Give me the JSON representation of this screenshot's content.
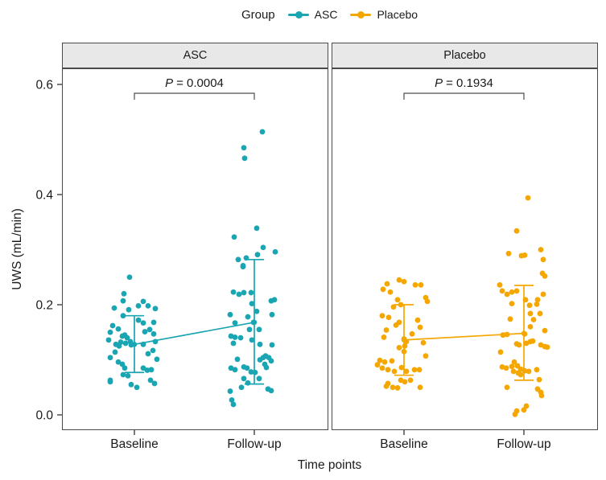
{
  "chart_data": {
    "type": "scatter",
    "subtype": "jitter-with-mean-errorbars",
    "legend": {
      "title": "Group",
      "position": "top",
      "items": [
        {
          "label": "ASC",
          "color": "#1aa5b2"
        },
        {
          "label": "Placebo",
          "color": "#f5a700"
        }
      ]
    },
    "xlabel": "Time points",
    "ylabel": "UWS (mL/min)",
    "x_categories": [
      "Baseline",
      "Follow-up"
    ],
    "y_ticks": [
      {
        "label": "0.0",
        "value": 0.0
      },
      {
        "label": "0.2",
        "value": 0.2
      },
      {
        "label": "0.4",
        "value": 0.4
      },
      {
        "label": "0.6",
        "value": 0.6
      }
    ],
    "ylim": [
      -0.03,
      0.63
    ],
    "grid": false,
    "facets": [
      {
        "label": "ASC",
        "color": "#1aa5b2",
        "p_label": "P = 0.0004",
        "groups": [
          {
            "x": "Baseline",
            "mean": 0.128,
            "err_low": 0.077,
            "err_high": 0.18,
            "points": [
              [
                -6,
                0.25
              ],
              [
                -13,
                0.22
              ],
              [
                -25,
                0.194
              ],
              [
                -14,
                0.207
              ],
              [
                -7,
                0.191
              ],
              [
                5,
                0.198
              ],
              [
                11,
                0.206
              ],
              [
                17,
                0.198
              ],
              [
                -14,
                0.18
              ],
              [
                26,
                0.193
              ],
              [
                24,
                0.168
              ],
              [
                5,
                0.172
              ],
              [
                11,
                0.167
              ],
              [
                -27,
                0.162
              ],
              [
                -20,
                0.156
              ],
              [
                -30,
                0.15
              ],
              [
                -12,
                0.145
              ],
              [
                -9,
                0.14
              ],
              [
                -5,
                0.133
              ],
              [
                -15,
                0.143
              ],
              [
                13,
                0.151
              ],
              [
                19,
                0.155
              ],
              [
                24,
                0.147
              ],
              [
                -32,
                0.136
              ],
              [
                -4,
                0.127
              ],
              [
                11,
                0.128
              ],
              [
                26,
                0.133
              ],
              [
                -24,
                0.114
              ],
              [
                -30,
                0.104
              ],
              [
                -20,
                0.096
              ],
              [
                -15,
                0.092
              ],
              [
                -12,
                0.085
              ],
              [
                17,
                0.111
              ],
              [
                23,
                0.117
              ],
              [
                28,
                0.101
              ],
              [
                11,
                0.085
              ],
              [
                16,
                0.081
              ],
              [
                21,
                0.082
              ],
              [
                -14,
                0.073
              ],
              [
                -8,
                0.071
              ],
              [
                -30,
                0.063
              ],
              [
                -4,
                0.055
              ],
              [
                20,
                0.063
              ],
              [
                25,
                0.057
              ],
              [
                3,
                0.05
              ],
              [
                -30,
                0.06
              ],
              [
                -17,
                0.132
              ],
              [
                -11,
                0.13
              ],
              [
                -19,
                0.125
              ],
              [
                -23,
                0.128
              ]
            ]
          },
          {
            "x": "Follow-up",
            "mean": 0.168,
            "err_low": 0.056,
            "err_high": 0.282,
            "points": [
              [
                10,
                0.514
              ],
              [
                -13,
                0.485
              ],
              [
                -12,
                0.466
              ],
              [
                3,
                0.339
              ],
              [
                -25,
                0.323
              ],
              [
                11,
                0.304
              ],
              [
                26,
                0.296
              ],
              [
                4,
                0.291
              ],
              [
                -10,
                0.285
              ],
              [
                -20,
                0.282
              ],
              [
                -14,
                0.271
              ],
              [
                -14,
                0.269
              ],
              [
                -26,
                0.223
              ],
              [
                -19,
                0.219
              ],
              [
                -13,
                0.222
              ],
              [
                -4,
                0.222
              ],
              [
                -3,
                0.202
              ],
              [
                3,
                0.188
              ],
              [
                21,
                0.207
              ],
              [
                25,
                0.209
              ],
              [
                22,
                0.182
              ],
              [
                -30,
                0.182
              ],
              [
                -24,
                0.167
              ],
              [
                -8,
                0.178
              ],
              [
                -1,
                0.168
              ],
              [
                -6,
                0.155
              ],
              [
                6,
                0.155
              ],
              [
                -29,
                0.143
              ],
              [
                -24,
                0.141
              ],
              [
                -17,
                0.14
              ],
              [
                -26,
                0.13
              ],
              [
                -3,
                0.136
              ],
              [
                7,
                0.128
              ],
              [
                22,
                0.127
              ],
              [
                14,
                0.107
              ],
              [
                7,
                0.1
              ],
              [
                11,
                0.104
              ],
              [
                18,
                0.104
              ],
              [
                -21,
                0.101
              ],
              [
                21,
                0.098
              ],
              [
                13,
                0.092
              ],
              [
                15,
                0.086
              ],
              [
                -29,
                0.085
              ],
              [
                -24,
                0.082
              ],
              [
                -13,
                0.087
              ],
              [
                -9,
                0.085
              ],
              [
                -4,
                0.078
              ],
              [
                1,
                0.077
              ],
              [
                6,
                0.066
              ],
              [
                -13,
                0.066
              ],
              [
                -8,
                0.058
              ],
              [
                -16,
                0.05
              ],
              [
                17,
                0.047
              ],
              [
                21,
                0.044
              ],
              [
                -30,
                0.043
              ],
              [
                -28,
                0.027
              ],
              [
                -26,
                0.019
              ]
            ]
          }
        ]
      },
      {
        "label": "Placebo",
        "color": "#f5a700",
        "p_label": "P = 0.1934",
        "groups": [
          {
            "x": "Baseline",
            "mean": 0.136,
            "err_low": 0.072,
            "err_high": 0.2,
            "points": [
              [
                -6,
                0.245
              ],
              [
                0,
                0.242
              ],
              [
                -21,
                0.238
              ],
              [
                -26,
                0.228
              ],
              [
                14,
                0.236
              ],
              [
                21,
                0.236
              ],
              [
                -17,
                0.223
              ],
              [
                -8,
                0.209
              ],
              [
                -4,
                0.2
              ],
              [
                27,
                0.213
              ],
              [
                29,
                0.206
              ],
              [
                -13,
                0.196
              ],
              [
                -27,
                0.18
              ],
              [
                -19,
                0.177
              ],
              [
                -6,
                0.168
              ],
              [
                17,
                0.172
              ],
              [
                20,
                0.159
              ],
              [
                -22,
                0.154
              ],
              [
                -25,
                0.141
              ],
              [
                0,
                0.138
              ],
              [
                3,
                0.133
              ],
              [
                1,
                0.125
              ],
              [
                -6,
                0.122
              ],
              [
                0,
                0.115
              ],
              [
                27,
                0.107
              ],
              [
                -30,
                0.099
              ],
              [
                -24,
                0.096
              ],
              [
                -15,
                0.098
              ],
              [
                -33,
                0.091
              ],
              [
                -27,
                0.085
              ],
              [
                -20,
                0.082
              ],
              [
                -12,
                0.079
              ],
              [
                -3,
                0.086
              ],
              [
                3,
                0.079
              ],
              [
                13,
                0.082
              ],
              [
                19,
                0.082
              ],
              [
                -4,
                0.063
              ],
              [
                1,
                0.06
              ],
              [
                8,
                0.063
              ],
              [
                -20,
                0.057
              ],
              [
                -14,
                0.05
              ],
              [
                -8,
                0.049
              ],
              [
                20,
                0.05
              ],
              [
                -22,
                0.052
              ],
              [
                -10,
                0.163
              ],
              [
                10,
                0.147
              ],
              [
                24,
                0.131
              ]
            ]
          },
          {
            "x": "Follow-up",
            "mean": 0.148,
            "err_low": 0.063,
            "err_high": 0.235,
            "points": [
              [
                5,
                0.394
              ],
              [
                -9,
                0.334
              ],
              [
                -19,
                0.293
              ],
              [
                -3,
                0.289
              ],
              [
                1,
                0.29
              ],
              [
                21,
                0.3
              ],
              [
                24,
                0.282
              ],
              [
                23,
                0.257
              ],
              [
                26,
                0.252
              ],
              [
                -30,
                0.236
              ],
              [
                -27,
                0.225
              ],
              [
                -21,
                0.219
              ],
              [
                -15,
                0.223
              ],
              [
                -9,
                0.225
              ],
              [
                2,
                0.209
              ],
              [
                17,
                0.209
              ],
              [
                24,
                0.219
              ],
              [
                -15,
                0.202
              ],
              [
                7,
                0.199
              ],
              [
                16,
                0.201
              ],
              [
                8,
                0.184
              ],
              [
                20,
                0.184
              ],
              [
                -17,
                0.174
              ],
              [
                12,
                0.173
              ],
              [
                8,
                0.16
              ],
              [
                26,
                0.153
              ],
              [
                -26,
                0.145
              ],
              [
                -21,
                0.146
              ],
              [
                1,
                0.147
              ],
              [
                -9,
                0.129
              ],
              [
                -6,
                0.127
              ],
              [
                3,
                0.13
              ],
              [
                8,
                0.133
              ],
              [
                11,
                0.134
              ],
              [
                21,
                0.127
              ],
              [
                26,
                0.124
              ],
              [
                29,
                0.123
              ],
              [
                -29,
                0.114
              ],
              [
                -12,
                0.096
              ],
              [
                -27,
                0.087
              ],
              [
                -22,
                0.085
              ],
              [
                -15,
                0.088
              ],
              [
                -8,
                0.089
              ],
              [
                -4,
                0.083
              ],
              [
                -13,
                0.079
              ],
              [
                -7,
                0.076
              ],
              [
                -4,
                0.073
              ],
              [
                1,
                0.08
              ],
              [
                6,
                0.079
              ],
              [
                16,
                0.082
              ],
              [
                19,
                0.064
              ],
              [
                -21,
                0.05
              ],
              [
                17,
                0.047
              ],
              [
                21,
                0.041
              ],
              [
                22,
                0.035
              ],
              [
                3,
                0.016
              ],
              [
                -9,
                0.007
              ],
              [
                0,
                0.009
              ],
              [
                -11,
                0.001
              ]
            ]
          }
        ]
      }
    ]
  }
}
